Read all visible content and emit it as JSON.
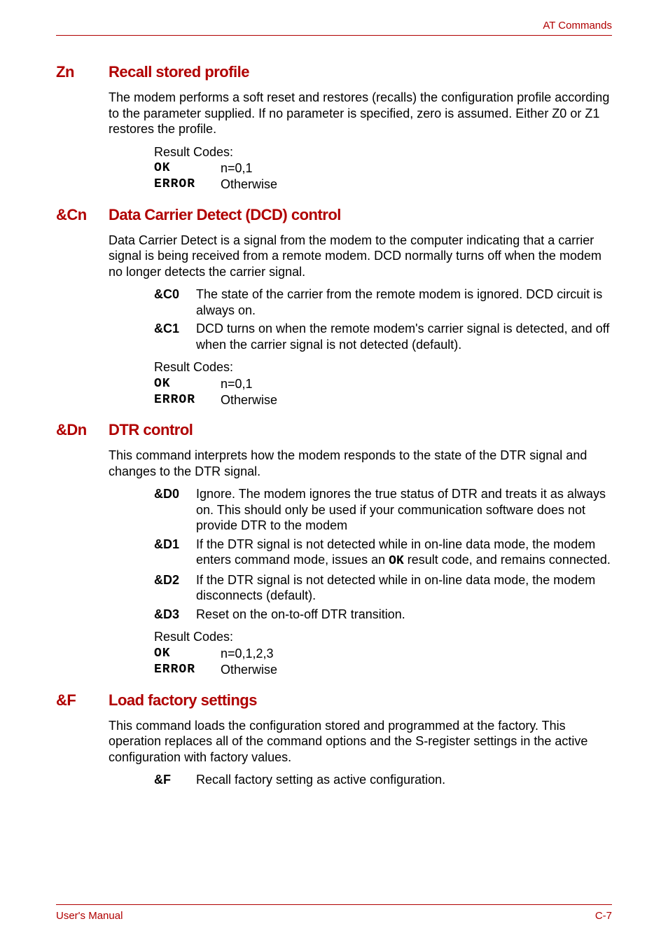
{
  "header": {
    "right": "AT Commands"
  },
  "footer": {
    "left": "User's Manual",
    "right": "C-7"
  },
  "sections": {
    "zn": {
      "code": "Zn",
      "title": "Recall stored profile",
      "body": "The modem performs a soft reset and restores (recalls) the configuration profile according to the parameter supplied. If no parameter is specified, zero is assumed. Either Z0 or Z1 restores the profile.",
      "rc": {
        "label": "Result Codes:",
        "ok": "OK",
        "ok_val": "n=0,1",
        "err": "ERROR",
        "err_val": "Otherwise"
      }
    },
    "cn": {
      "code": "&Cn",
      "title": "Data Carrier Detect (DCD) control",
      "body": "Data Carrier Detect is a signal from the modem to the computer indicating that a carrier signal is being received from a remote modem. DCD normally turns off when the modem no longer detects the carrier signal.",
      "defs": [
        {
          "code": "&C0",
          "text": "The state of the carrier from the remote modem is ignored. DCD circuit is always on."
        },
        {
          "code": "&C1",
          "text": "DCD turns on when the remote modem's carrier signal is detected, and off when the carrier signal is not detected (default)."
        }
      ],
      "rc": {
        "label": "Result Codes:",
        "ok": "OK",
        "ok_val": "n=0,1",
        "err": "ERROR",
        "err_val": "Otherwise"
      }
    },
    "dn": {
      "code": "&Dn",
      "title": "DTR control",
      "body": "This command interprets how the modem responds to the state of the DTR signal and changes to the DTR signal.",
      "defs": [
        {
          "code": "&D0",
          "text": "Ignore. The modem ignores the true status of DTR and treats it as always on. This should only be used if your communication software does not provide DTR to the modem"
        },
        {
          "code": "&D1",
          "text_pre": "If the DTR signal is not detected while in on-line data mode, the modem enters command mode, issues an ",
          "mono": "OK",
          "text_post": " result code, and remains connected."
        },
        {
          "code": "&D2",
          "text": "If the DTR signal is not detected while in on-line data mode, the modem disconnects (default)."
        },
        {
          "code": "&D3",
          "text": "Reset on the on-to-off DTR transition."
        }
      ],
      "rc": {
        "label": "Result Codes:",
        "ok": "OK",
        "ok_val": "n=0,1,2,3",
        "err": "ERROR",
        "err_val": "Otherwise"
      }
    },
    "f": {
      "code": "&F",
      "title": "Load factory settings",
      "body": "This command loads the configuration stored and programmed at the factory. This operation replaces all of the command options and the S-register settings in the active configuration with factory values.",
      "defs": [
        {
          "code": "&F",
          "text": "Recall factory setting as active configuration."
        }
      ]
    }
  }
}
